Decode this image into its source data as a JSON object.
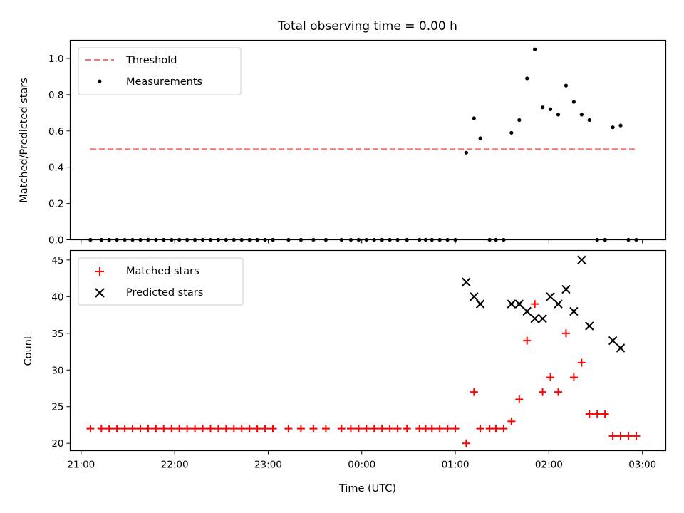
{
  "chart_data": [
    {
      "type": "scatter",
      "title": "Total observing time = 0.00 h",
      "xlabel": "",
      "ylabel": "Matched/Predicted stars",
      "ylim": [
        0,
        1.1
      ],
      "yticks": [
        "0.0",
        "0.2",
        "0.4",
        "0.6",
        "0.8",
        "1.0"
      ],
      "xlim": [
        "20:53",
        "03:15"
      ],
      "grid": false,
      "legend_position": "top-left",
      "legend": [
        "Threshold",
        "Measurements"
      ],
      "threshold": {
        "name": "Threshold",
        "value": 0.5,
        "x_start": "21:06",
        "x_end": "02:55",
        "color": "#ff7070"
      },
      "series": [
        {
          "name": "Measurements",
          "color": "#000000",
          "marker": "dot",
          "points": [
            [
              "21:06",
              0
            ],
            [
              "21:13",
              0
            ],
            [
              "21:18",
              0
            ],
            [
              "21:23",
              0
            ],
            [
              "21:28",
              0
            ],
            [
              "21:33",
              0
            ],
            [
              "21:38",
              0
            ],
            [
              "21:43",
              0
            ],
            [
              "21:48",
              0
            ],
            [
              "21:53",
              0
            ],
            [
              "21:58",
              0
            ],
            [
              "22:03",
              0
            ],
            [
              "22:08",
              0
            ],
            [
              "22:13",
              0
            ],
            [
              "22:18",
              0
            ],
            [
              "22:23",
              0
            ],
            [
              "22:28",
              0
            ],
            [
              "22:33",
              0
            ],
            [
              "22:38",
              0
            ],
            [
              "22:43",
              0
            ],
            [
              "22:48",
              0
            ],
            [
              "22:53",
              0
            ],
            [
              "22:58",
              0
            ],
            [
              "23:03",
              0
            ],
            [
              "23:13",
              0
            ],
            [
              "23:21",
              0
            ],
            [
              "23:29",
              0
            ],
            [
              "23:37",
              0
            ],
            [
              "23:47",
              0
            ],
            [
              "23:53",
              0
            ],
            [
              "23:58",
              0
            ],
            [
              "00:03",
              0
            ],
            [
              "00:08",
              0
            ],
            [
              "00:13",
              0
            ],
            [
              "00:18",
              0
            ],
            [
              "00:23",
              0
            ],
            [
              "00:29",
              0
            ],
            [
              "00:37",
              0
            ],
            [
              "00:41",
              0
            ],
            [
              "00:45",
              0
            ],
            [
              "00:50",
              0
            ],
            [
              "00:55",
              0
            ],
            [
              "01:00",
              0
            ],
            [
              "01:07",
              0.48
            ],
            [
              "01:12",
              0.67
            ],
            [
              "01:16",
              0.56
            ],
            [
              "01:22",
              0
            ],
            [
              "01:26",
              0
            ],
            [
              "01:31",
              0
            ],
            [
              "01:36",
              0.59
            ],
            [
              "01:41",
              0.66
            ],
            [
              "01:46",
              0.89
            ],
            [
              "01:51",
              1.05
            ],
            [
              "01:56",
              0.73
            ],
            [
              "02:01",
              0.72
            ],
            [
              "02:06",
              0.69
            ],
            [
              "02:11",
              0.85
            ],
            [
              "02:16",
              0.76
            ],
            [
              "02:21",
              0.69
            ],
            [
              "02:26",
              0.66
            ],
            [
              "02:31",
              0
            ],
            [
              "02:36",
              0
            ],
            [
              "02:41",
              0.62
            ],
            [
              "02:46",
              0.63
            ],
            [
              "02:51",
              0
            ],
            [
              "02:56",
              0
            ]
          ]
        }
      ]
    },
    {
      "type": "scatter",
      "title": "",
      "xlabel": "Time (UTC)",
      "ylabel": "Count",
      "ylim": [
        19,
        46.3
      ],
      "yticks": [
        "20",
        "25",
        "30",
        "35",
        "40",
        "45"
      ],
      "xlim": [
        "20:53",
        "03:15"
      ],
      "xticks": [
        "21:00",
        "22:00",
        "23:00",
        "00:00",
        "01:00",
        "02:00",
        "03:00"
      ],
      "grid": false,
      "legend_position": "top-left",
      "series": [
        {
          "name": "Matched stars",
          "color": "#ff0000",
          "marker": "plus",
          "points": [
            [
              "21:06",
              22
            ],
            [
              "21:13",
              22
            ],
            [
              "21:18",
              22
            ],
            [
              "21:23",
              22
            ],
            [
              "21:28",
              22
            ],
            [
              "21:33",
              22
            ],
            [
              "21:38",
              22
            ],
            [
              "21:43",
              22
            ],
            [
              "21:48",
              22
            ],
            [
              "21:53",
              22
            ],
            [
              "21:58",
              22
            ],
            [
              "22:03",
              22
            ],
            [
              "22:08",
              22
            ],
            [
              "22:13",
              22
            ],
            [
              "22:18",
              22
            ],
            [
              "22:23",
              22
            ],
            [
              "22:28",
              22
            ],
            [
              "22:33",
              22
            ],
            [
              "22:38",
              22
            ],
            [
              "22:43",
              22
            ],
            [
              "22:48",
              22
            ],
            [
              "22:53",
              22
            ],
            [
              "22:58",
              22
            ],
            [
              "23:03",
              22
            ],
            [
              "23:13",
              22
            ],
            [
              "23:21",
              22
            ],
            [
              "23:29",
              22
            ],
            [
              "23:37",
              22
            ],
            [
              "23:47",
              22
            ],
            [
              "23:53",
              22
            ],
            [
              "23:58",
              22
            ],
            [
              "00:03",
              22
            ],
            [
              "00:08",
              22
            ],
            [
              "00:13",
              22
            ],
            [
              "00:18",
              22
            ],
            [
              "00:23",
              22
            ],
            [
              "00:29",
              22
            ],
            [
              "00:37",
              22
            ],
            [
              "00:41",
              22
            ],
            [
              "00:45",
              22
            ],
            [
              "00:50",
              22
            ],
            [
              "00:55",
              22
            ],
            [
              "01:00",
              22
            ],
            [
              "01:07",
              20
            ],
            [
              "01:12",
              27
            ],
            [
              "01:16",
              22
            ],
            [
              "01:22",
              22
            ],
            [
              "01:26",
              22
            ],
            [
              "01:31",
              22
            ],
            [
              "01:36",
              23
            ],
            [
              "01:41",
              26
            ],
            [
              "01:46",
              34
            ],
            [
              "01:51",
              39
            ],
            [
              "01:56",
              27
            ],
            [
              "02:01",
              29
            ],
            [
              "02:06",
              27
            ],
            [
              "02:11",
              35
            ],
            [
              "02:16",
              29
            ],
            [
              "02:21",
              31
            ],
            [
              "02:26",
              24
            ],
            [
              "02:31",
              24
            ],
            [
              "02:36",
              24
            ],
            [
              "02:41",
              21
            ],
            [
              "02:46",
              21
            ],
            [
              "02:51",
              21
            ],
            [
              "02:56",
              21
            ]
          ]
        },
        {
          "name": "Predicted stars",
          "color": "#000000",
          "marker": "x",
          "points": [
            [
              "01:07",
              42
            ],
            [
              "01:12",
              40
            ],
            [
              "01:16",
              39
            ],
            [
              "01:36",
              39
            ],
            [
              "01:41",
              39
            ],
            [
              "01:46",
              38
            ],
            [
              "01:51",
              37
            ],
            [
              "01:56",
              37
            ],
            [
              "02:01",
              40
            ],
            [
              "02:06",
              39
            ],
            [
              "02:11",
              41
            ],
            [
              "02:16",
              38
            ],
            [
              "02:21",
              45
            ],
            [
              "02:26",
              36
            ],
            [
              "02:41",
              34
            ],
            [
              "02:46",
              33
            ]
          ]
        }
      ]
    }
  ]
}
